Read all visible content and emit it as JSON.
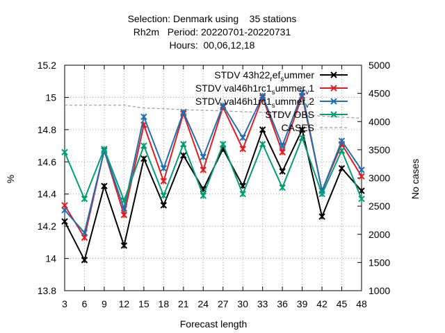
{
  "chart_data": {
    "type": "line",
    "title_lines": [
      "Selection: Denmark using    35 stations",
      "Rh2m   Period: 20220701-20220731",
      "Hours:  00,06,12,18"
    ],
    "xlabel": "Forecast length",
    "ylabel": "%",
    "y2label": "No cases",
    "x": [
      3,
      6,
      9,
      12,
      15,
      18,
      21,
      24,
      27,
      30,
      33,
      36,
      39,
      42,
      45,
      48
    ],
    "xlim": [
      3,
      48
    ],
    "ylim": [
      13.8,
      15.2
    ],
    "y2lim": [
      1000,
      5000
    ],
    "yticks": [
      "13.8",
      "14",
      "14.2",
      "14.4",
      "14.6",
      "14.8",
      "15",
      "15.2"
    ],
    "y2ticks": [
      "1000",
      "1500",
      "2000",
      "2500",
      "3000",
      "3500",
      "4000",
      "4500",
      "5000"
    ],
    "grid": true,
    "legend_position": "top-right",
    "series": [
      {
        "name_main": "STDV 43h22",
        "name_sub1": "r",
        "name_mid": "ef",
        "name_sub2": "s",
        "name_end": "ummer",
        "color": "#000000",
        "axis": "y",
        "values": [
          14.23,
          13.99,
          14.45,
          14.08,
          14.62,
          14.33,
          14.64,
          14.43,
          14.68,
          14.45,
          14.8,
          14.54,
          14.8,
          14.26,
          14.56,
          14.42
        ]
      },
      {
        "name_main": "STDV val46h1rc1",
        "name_sub1": "s",
        "name_mid": "ummer",
        "name_sub2": "v",
        "name_end": "1",
        "color": "#e41a1c",
        "axis": "y",
        "values": [
          14.33,
          14.13,
          14.67,
          14.27,
          14.83,
          14.48,
          14.9,
          14.55,
          14.94,
          14.68,
          15.0,
          14.66,
          15.01,
          14.42,
          14.71,
          14.51
        ]
      },
      {
        "name_main": "STDV val46h1rc1",
        "name_sub1": "s",
        "name_mid": "ummer",
        "name_sub2": "v",
        "name_end": "2",
        "color": "#1f6fb4",
        "axis": "y",
        "values": [
          14.3,
          14.16,
          14.67,
          14.31,
          14.88,
          14.56,
          14.91,
          14.63,
          14.95,
          14.75,
          15.01,
          14.7,
          15.03,
          14.42,
          14.73,
          14.55
        ]
      },
      {
        "name_main": "STDV OBS",
        "color": "#009e73",
        "axis": "y",
        "values": [
          14.66,
          14.37,
          14.68,
          14.36,
          14.7,
          14.39,
          14.71,
          14.39,
          14.71,
          14.4,
          14.71,
          14.44,
          14.75,
          14.4,
          14.67,
          14.37
        ]
      },
      {
        "name_main": "CASES",
        "color": "#999999",
        "axis": "y2",
        "dashed": true,
        "values": [
          4290,
          4290,
          4290,
          4290,
          4240,
          4230,
          4210,
          4200,
          4190,
          4175,
          4165,
          4150,
          4120,
          4095,
          4080,
          4060
        ]
      }
    ]
  }
}
